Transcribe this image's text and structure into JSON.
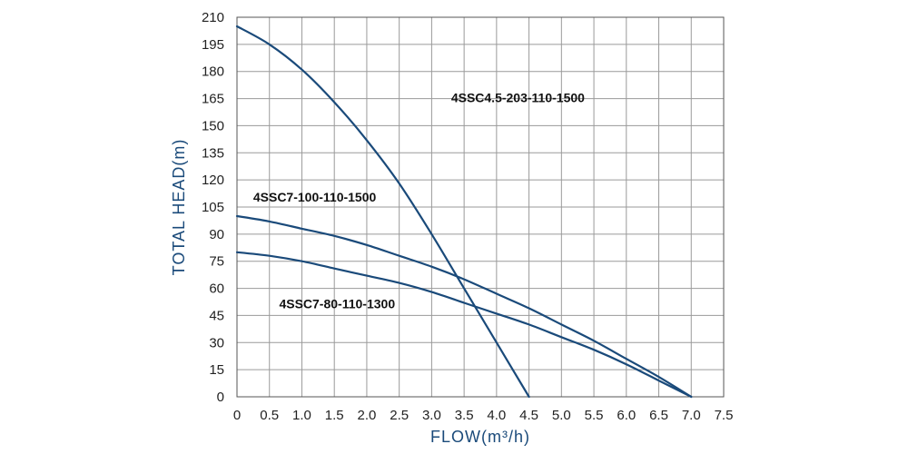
{
  "chart_data": {
    "type": "line",
    "title": "",
    "xlabel": "FLOW(m³/h)",
    "ylabel": "TOTAL HEAD(m)",
    "xlim": [
      0,
      7.5
    ],
    "ylim": [
      0,
      210
    ],
    "x_ticks": [
      "0",
      "0.5",
      "1.0",
      "1.5",
      "2.0",
      "2.5",
      "3.0",
      "3.5",
      "4.0",
      "4.5",
      "5.0",
      "5.5",
      "6.0",
      "6.5",
      "7.0",
      "7.5"
    ],
    "y_ticks": [
      "0",
      "15",
      "30",
      "45",
      "60",
      "75",
      "90",
      "105",
      "120",
      "135",
      "150",
      "165",
      "180",
      "195",
      "210"
    ],
    "grid": true,
    "legend": "none",
    "series": [
      {
        "name": "4SSC4.5-203-110-1500",
        "color": "#1a4a7a",
        "x": [
          0,
          0.5,
          1.0,
          1.5,
          2.0,
          2.5,
          3.0,
          3.5,
          4.0,
          4.5
        ],
        "y": [
          205,
          195,
          181,
          163,
          142,
          118,
          90,
          60,
          30,
          0
        ]
      },
      {
        "name": "4SSC7-100-110-1500",
        "color": "#1a4a7a",
        "x": [
          0,
          0.5,
          1.0,
          1.5,
          2.0,
          2.5,
          3.0,
          3.5,
          4.0,
          4.5,
          5.0,
          5.5,
          6.0,
          6.5,
          7.0
        ],
        "y": [
          100,
          97,
          93,
          89,
          84,
          78,
          72,
          65,
          57,
          49,
          40,
          31,
          21,
          11,
          0
        ]
      },
      {
        "name": "4SSC7-80-110-1300",
        "color": "#1a4a7a",
        "x": [
          0,
          0.5,
          1.0,
          1.5,
          2.0,
          2.5,
          3.0,
          3.5,
          4.0,
          4.5,
          5.0,
          5.5,
          6.0,
          6.5,
          7.0
        ],
        "y": [
          80,
          78,
          75,
          71,
          67,
          63,
          58,
          52,
          46,
          40,
          33,
          26,
          18,
          9,
          0
        ]
      }
    ],
    "annotations": [
      {
        "text": "4SSC4.5-203-110-1500",
        "x": 3.3,
        "y": 163
      },
      {
        "text": "4SSC7-100-110-1500",
        "x": 0.25,
        "y": 108
      },
      {
        "text": "4SSC7-80-110-1300",
        "x": 0.65,
        "y": 49
      }
    ],
    "colors": {
      "axis_title": "#1a4a7a",
      "grid": "#9a9a9a",
      "tick_text": "#222222"
    }
  }
}
